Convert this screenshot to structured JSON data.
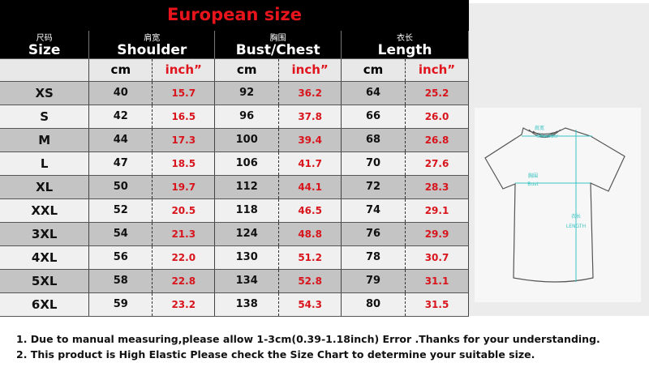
{
  "title": "European size",
  "headers": {
    "size_zh": "尺码",
    "size": "Size",
    "shoulder_zh": "肩宽",
    "shoulder": "Shoulder",
    "bust_zh": "胸围",
    "bust": "Bust/Chest",
    "length_zh": "衣长",
    "length": "Length",
    "cm": "cm",
    "inch": "inch”"
  },
  "rows": [
    [
      "XS",
      "40",
      "15.7",
      "92",
      "36.2",
      "64",
      "25.2"
    ],
    [
      "S",
      "42",
      "16.5",
      "96",
      "37.8",
      "66",
      "26.0"
    ],
    [
      "M",
      "44",
      "17.3",
      "100",
      "39.4",
      "68",
      "26.8"
    ],
    [
      "L",
      "47",
      "18.5",
      "106",
      "41.7",
      "70",
      "27.6"
    ],
    [
      "XL",
      "50",
      "19.7",
      "112",
      "44.1",
      "72",
      "28.3"
    ],
    [
      "XXL",
      "52",
      "20.5",
      "118",
      "46.5",
      "74",
      "29.1"
    ],
    [
      "3XL",
      "54",
      "21.3",
      "124",
      "48.8",
      "76",
      "29.9"
    ],
    [
      "4XL",
      "56",
      "22.0",
      "130",
      "51.2",
      "78",
      "30.7"
    ],
    [
      "5XL",
      "58",
      "22.8",
      "134",
      "52.8",
      "79",
      "31.1"
    ],
    [
      "6XL",
      "59",
      "23.2",
      "138",
      "54.3",
      "80",
      "31.5"
    ]
  ],
  "diagram": {
    "shoulder_zh": "肩宽",
    "shoulder": "Shoulder",
    "bust_zh": "胸围",
    "bust": "Bust",
    "length_zh": "衣长",
    "length": "LENGTH",
    "accent": "#3cc3c3"
  },
  "notes": [
    "1. Due to manual measuring,please allow 1-3cm(0.39-1.18inch) Error .Thanks for your understanding.",
    "2. This product is High Elastic Please check the Size Chart to determine your suitable size."
  ]
}
